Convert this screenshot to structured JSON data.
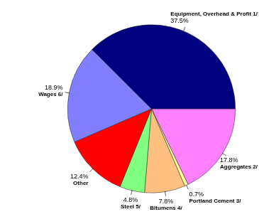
{
  "chart_data": {
    "type": "pie",
    "categories": [
      "Aggregates 2/",
      "Portland Cement 3/",
      "Bitumens 4/",
      "Steel 5/",
      "Other",
      "Wages 6/",
      "Equipment, Overhead & Profit 1/"
    ],
    "values": [
      17.8,
      0.7,
      7.8,
      4.8,
      12.4,
      18.9,
      37.5
    ],
    "value_labels": [
      "17.8%",
      "0.7%",
      "7.8%",
      "4.8%",
      "12.4%",
      "18.9%",
      "37.5%"
    ],
    "colors": [
      "#ff80ff",
      "#ffffa0",
      "#ffc080",
      "#80ff80",
      "#ff0000",
      "#8080ff",
      "#000080"
    ],
    "data_labels": true
  }
}
